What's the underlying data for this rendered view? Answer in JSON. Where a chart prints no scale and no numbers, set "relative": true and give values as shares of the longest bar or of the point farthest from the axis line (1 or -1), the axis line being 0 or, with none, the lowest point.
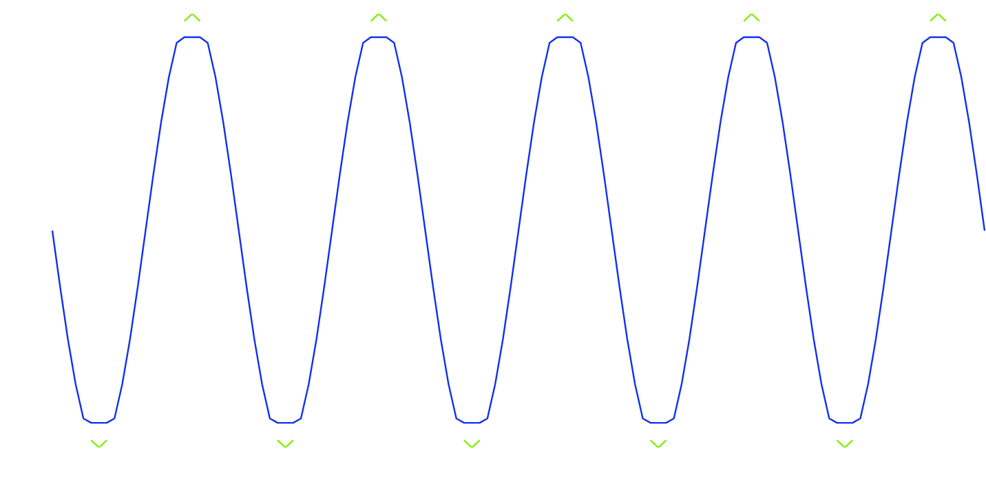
{
  "chart_data": {
    "type": "line",
    "relative": true,
    "categories": [
      null,
      null,
      null,
      null,
      null,
      null,
      null,
      null,
      null,
      null,
      null,
      null,
      null,
      null,
      null,
      null,
      null,
      null,
      null,
      null,
      null,
      null,
      null,
      null,
      null,
      null,
      null,
      null,
      null,
      null,
      null,
      null,
      null,
      null,
      null,
      null,
      null,
      null,
      null,
      null,
      null,
      null,
      null,
      null,
      null,
      null,
      null,
      null,
      null,
      null,
      null,
      null,
      null,
      null,
      null,
      null,
      null,
      null,
      null,
      null,
      null,
      null,
      null,
      null,
      null,
      null,
      null,
      null,
      null,
      null,
      null,
      null,
      null,
      null,
      null,
      null,
      null,
      null,
      null,
      null,
      null,
      null,
      null,
      null,
      null,
      null,
      null,
      null,
      null,
      null,
      null,
      null,
      null,
      null,
      null,
      null,
      null,
      null,
      null,
      null,
      null,
      null,
      null,
      null,
      null,
      null,
      null,
      null,
      null,
      null,
      null,
      null,
      null,
      null,
      null,
      null,
      null,
      null,
      null,
      null,
      null
    ],
    "series": [
      {
        "color": "#80f000",
        "values": [
          null,
          null,
          null,
          null,
          null,
          0.017,
          0,
          0.017,
          null,
          null,
          null,
          null,
          null,
          null,
          null,
          null,
          null,
          0.983,
          1,
          0.983,
          null,
          null,
          null,
          null,
          null,
          null,
          null,
          null,
          null,
          0.017,
          0,
          0.017,
          null,
          null,
          null,
          null,
          null,
          null,
          null,
          null,
          null,
          0.983,
          1,
          0.983,
          null,
          null,
          null,
          null,
          null,
          null,
          null,
          null,
          null,
          0.017,
          0,
          0.017,
          null,
          null,
          null,
          null,
          null,
          null,
          null,
          null,
          null,
          0.983,
          1,
          0.983,
          null,
          null,
          null,
          null,
          null,
          null,
          null,
          null,
          null,
          0.017,
          0,
          0.017,
          null,
          null,
          null,
          null,
          null,
          null,
          null,
          null,
          null,
          0.983,
          1,
          0.983,
          null,
          null,
          null,
          null,
          null,
          null,
          null,
          null,
          null,
          0.017,
          0,
          0.017,
          null,
          null,
          null,
          null,
          null,
          null,
          null,
          null,
          null,
          0.983,
          1,
          0.983,
          null,
          null,
          null,
          null,
          null
        ]
      },
      {
        "color": "#1030f0",
        "values": [
          0.5,
          0.371,
          0.25,
          0.146,
          0.067,
          0.057,
          0.057,
          0.057,
          0.067,
          0.146,
          0.25,
          0.371,
          0.5,
          0.629,
          0.75,
          0.854,
          0.933,
          0.946,
          0.946,
          0.946,
          0.933,
          0.854,
          0.75,
          0.629,
          0.5,
          0.371,
          0.25,
          0.146,
          0.067,
          0.057,
          0.057,
          0.057,
          0.067,
          0.146,
          0.25,
          0.371,
          0.5,
          0.629,
          0.75,
          0.854,
          0.933,
          0.946,
          0.946,
          0.946,
          0.933,
          0.854,
          0.75,
          0.629,
          0.5,
          0.371,
          0.25,
          0.146,
          0.067,
          0.057,
          0.057,
          0.057,
          0.067,
          0.146,
          0.25,
          0.371,
          0.5,
          0.629,
          0.75,
          0.854,
          0.933,
          0.946,
          0.946,
          0.946,
          0.933,
          0.854,
          0.75,
          0.629,
          0.5,
          0.371,
          0.25,
          0.146,
          0.067,
          0.057,
          0.057,
          0.057,
          0.067,
          0.146,
          0.25,
          0.371,
          0.5,
          0.629,
          0.75,
          0.854,
          0.933,
          0.946,
          0.946,
          0.946,
          0.933,
          0.854,
          0.75,
          0.629,
          0.5,
          0.371,
          0.25,
          0.146,
          0.067,
          0.057,
          0.057,
          0.057,
          0.067,
          0.146,
          0.25,
          0.371,
          0.5,
          0.629,
          0.75,
          0.854,
          0.933,
          0.946,
          0.946,
          0.946,
          0.933,
          0.854,
          0.75,
          0.629,
          0.5
        ]
      }
    ]
  }
}
